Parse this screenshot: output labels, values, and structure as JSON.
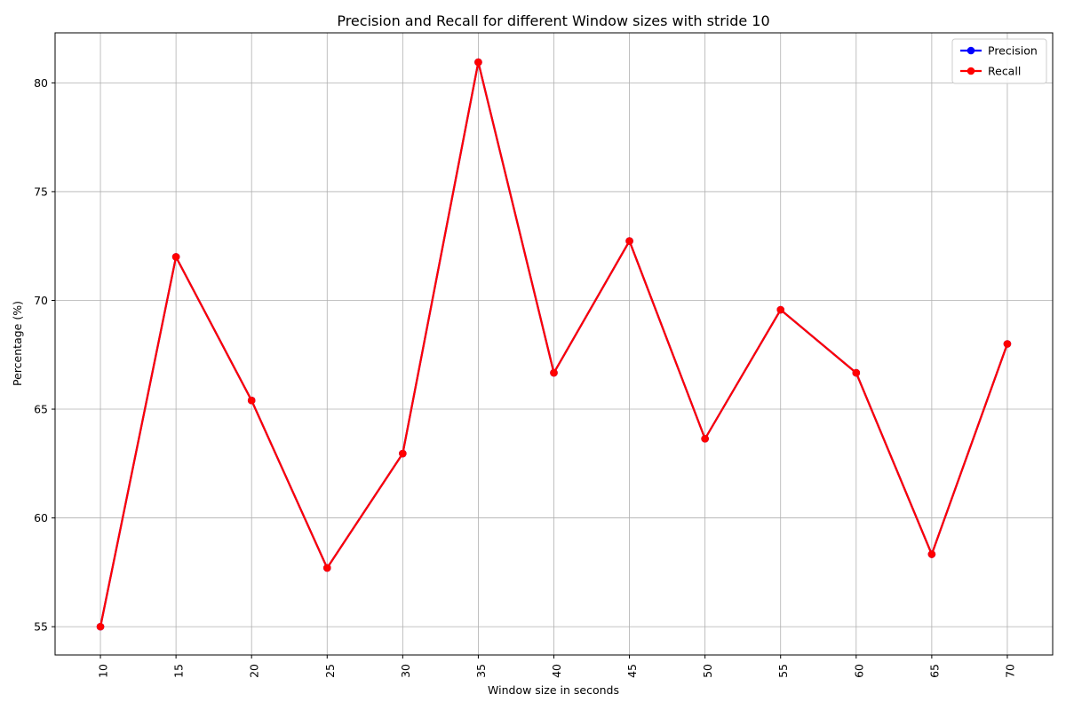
{
  "chart_data": {
    "type": "line",
    "title": "Precision and Recall for different Window sizes with stride 10",
    "xlabel": "Window size in seconds",
    "ylabel": "Percentage (%)",
    "x": [
      10,
      15,
      20,
      25,
      30,
      35,
      40,
      45,
      50,
      55,
      60,
      65,
      70
    ],
    "x_tick_labels": [
      "10",
      "15",
      "20",
      "25",
      "30",
      "35",
      "40",
      "45",
      "50",
      "55",
      "60",
      "65",
      "70"
    ],
    "y_ticks": [
      55,
      60,
      65,
      70,
      75,
      80
    ],
    "y_tick_labels": [
      "55",
      "60",
      "65",
      "70",
      "75",
      "80"
    ],
    "ylim": [
      53.7,
      82.3
    ],
    "grid": true,
    "legend_position": "top-right",
    "series": [
      {
        "name": "Precision",
        "color": "#0000ff",
        "marker": "circle",
        "values": [
          55.0,
          72.0,
          65.4,
          57.7,
          62.96,
          80.95,
          66.67,
          72.73,
          63.64,
          69.57,
          66.67,
          58.33,
          68.0
        ]
      },
      {
        "name": "Recall",
        "color": "#ff0000",
        "marker": "circle",
        "values": [
          55.0,
          72.0,
          65.4,
          57.7,
          62.96,
          80.95,
          66.67,
          72.73,
          63.64,
          69.57,
          66.67,
          58.33,
          68.0
        ]
      }
    ]
  }
}
